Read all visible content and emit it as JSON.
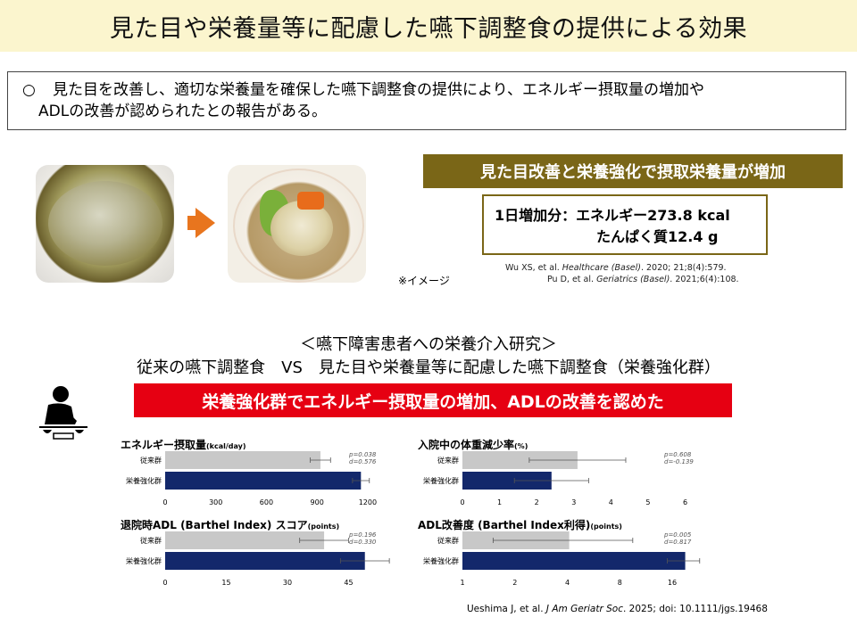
{
  "header": {
    "title": "見た目や栄養量等に配慮した嚥下調整食の提供による効果"
  },
  "summary": {
    "bullet": "○",
    "line1": "見た目を改善し、適切な栄養量を確保した嚥下調整食の提供により、エネルギー摂取量の増加や",
    "line2": "ADLの改善が認められたとの報告がある。"
  },
  "photos": {
    "note": "※イメージ"
  },
  "highlight": {
    "banner": "見た目改善と栄養強化で摂取栄養量が増加",
    "line1": "1日増加分：エネルギー273.8 kcal",
    "line2": "たんぱく質12.4 g"
  },
  "refs": {
    "ref1_pre": "Wu XS, et al. ",
    "ref1_journal": "Healthcare (Basel)",
    "ref1_post": ". 2020; 21;8(4):579.",
    "ref2_pre": "Pu D, et al. ",
    "ref2_journal": "Geriatrics (Basel)",
    "ref2_post": ". 2021;6(4):108.",
    "final_pre": "Ueshima J, et al. ",
    "final_journal": "J Am Geriatr Soc",
    "final_post": ". 2025; doi: 10.1111/jgs.19468"
  },
  "study": {
    "title": "＜嚥下障害患者への栄養介入研究＞",
    "subtitle": "従来の嚥下調整食　VS　見た目や栄養量等に配慮した嚥下調整食（栄養強化群）",
    "banner": "栄養強化群でエネルギー摂取量の増加、ADLの改善を認めた"
  },
  "colors": {
    "olive": "#7a6617",
    "red": "#e60012",
    "conventional": "#c8c8c8",
    "enhanced": "#13286b"
  },
  "chart_data": [
    {
      "type": "bar",
      "title": "エネルギー摂取量",
      "unit": "(kcal/day)",
      "categories": [
        "従来群",
        "栄養強化群"
      ],
      "values": [
        920,
        1160
      ],
      "errors": [
        60,
        50
      ],
      "ticks": [
        "0",
        "300",
        "600",
        "900",
        "1200"
      ],
      "tick_values": [
        0,
        300,
        600,
        900,
        1200
      ],
      "xlim": [
        0,
        1280
      ],
      "stats": [
        "p=0.038",
        "d=0.576"
      ]
    },
    {
      "type": "bar",
      "title": "入院中の体重減少率",
      "unit": "(%)",
      "categories": [
        "従来群",
        "栄養強化群"
      ],
      "values": [
        3.1,
        2.4
      ],
      "errors": [
        1.3,
        1.0
      ],
      "ticks": [
        "0",
        "1",
        "2",
        "3",
        "4",
        "5",
        "6"
      ],
      "tick_values": [
        0,
        1,
        2,
        3,
        4,
        5,
        6
      ],
      "xlim": [
        0,
        6.3
      ],
      "stats": [
        "p=0.608",
        "d=-0.139"
      ]
    },
    {
      "type": "bar",
      "title": "退院時ADL (Barthel Index) スコア",
      "unit": "(points)",
      "categories": [
        "従来群",
        "栄養強化群"
      ],
      "values": [
        39,
        49
      ],
      "errors": [
        6,
        6
      ],
      "ticks": [
        "0",
        "15",
        "30",
        "45"
      ],
      "tick_values": [
        0,
        15,
        30,
        45
      ],
      "xlim": [
        0,
        53
      ],
      "stats": [
        "p=0.196",
        "d=0.330"
      ]
    },
    {
      "type": "bar",
      "title": "ADL改善度 (Barthel Index利得)",
      "unit": "(points)",
      "scale": "log2",
      "categories": [
        "従来群",
        "栄養強化群"
      ],
      "values": [
        4.1,
        19
      ],
      "errors_low": [
        1.5,
        15
      ],
      "errors_high": [
        9.5,
        23
      ],
      "ticks": [
        "1",
        "2",
        "4",
        "8",
        "16"
      ],
      "tick_values": [
        1,
        2,
        4,
        8,
        16
      ],
      "xlim": [
        1,
        22
      ],
      "stats": [
        "p=0.005",
        "d=0.817"
      ]
    }
  ]
}
